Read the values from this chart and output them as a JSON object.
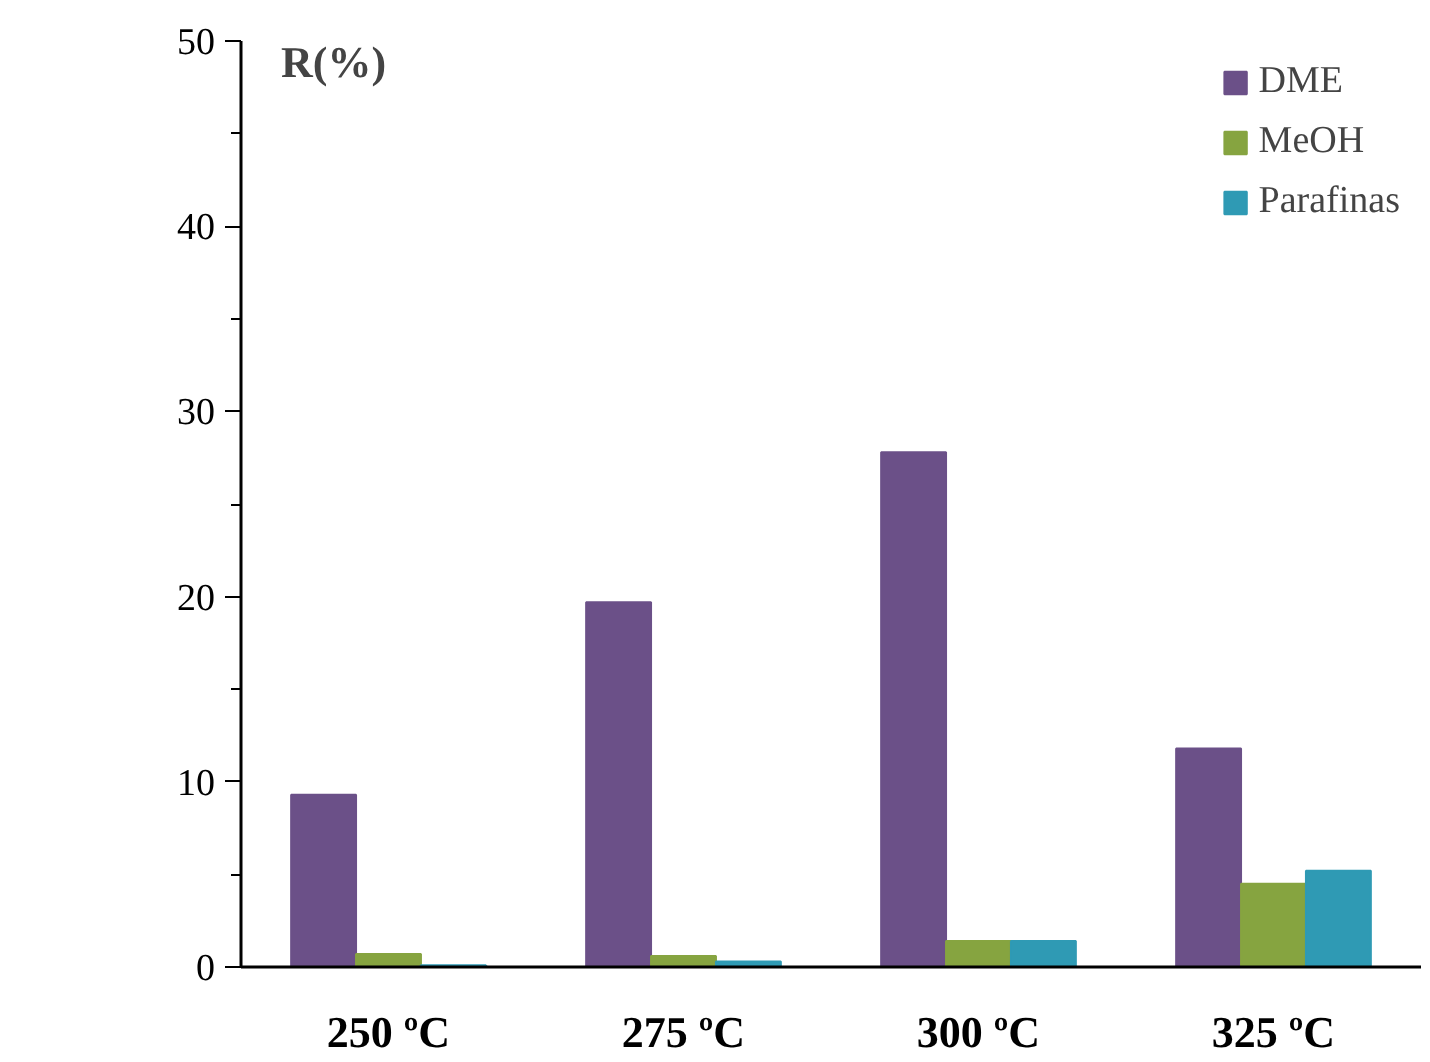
{
  "chart_data": {
    "type": "bar",
    "ylabel": "R(%)",
    "categories": [
      "250 ºC",
      "275 ºC",
      "300 ºC",
      "325 ºC"
    ],
    "series": [
      {
        "name": "DME",
        "color": "#6b5088",
        "values": [
          9.3,
          19.7,
          27.8,
          11.8
        ]
      },
      {
        "name": "MeOH",
        "color": "#86a440",
        "values": [
          0.7,
          0.6,
          1.4,
          4.5
        ]
      },
      {
        "name": "Parafinas",
        "color": "#2f9ab4",
        "values": [
          0.1,
          0.3,
          1.4,
          5.2
        ]
      }
    ],
    "ylim": [
      0,
      50
    ],
    "yticks": [
      0,
      10,
      20,
      30,
      40,
      50
    ],
    "grid": false,
    "legend": "top right"
  }
}
